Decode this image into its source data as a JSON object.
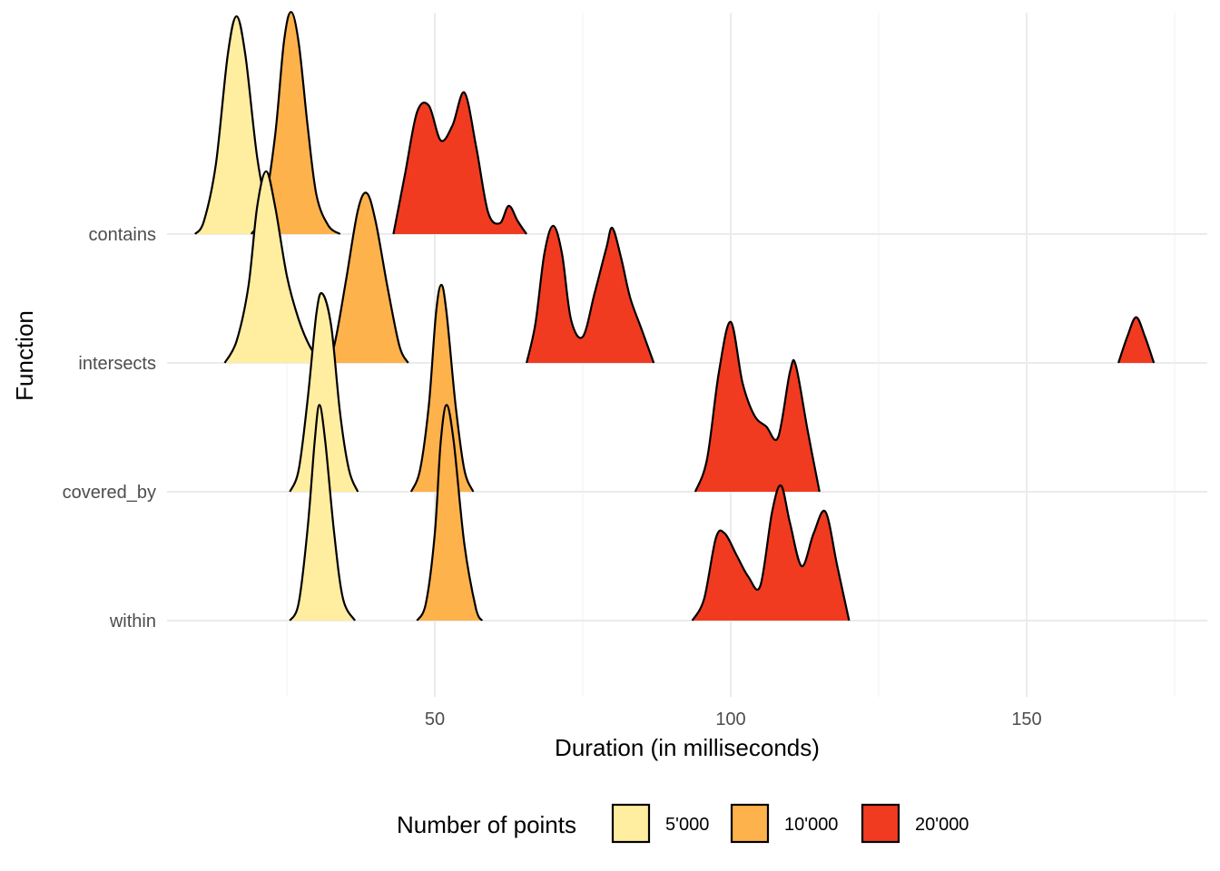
{
  "chart_data": {
    "type": "ridgeline",
    "title": "",
    "xlabel": "Duration (in milliseconds)",
    "ylabel": "Function",
    "xlim": [
      5,
      186
    ],
    "x_ticks": [
      50,
      100,
      150
    ],
    "x_tick_labels": [
      "50",
      "100",
      "150"
    ],
    "categories": [
      "contains",
      "intersects",
      "covered_by",
      "within"
    ],
    "grid": true,
    "legend": {
      "title": "Number of points",
      "placement": "bottom",
      "entries": [
        {
          "label": "5'000",
          "color": "#FFEDA0"
        },
        {
          "label": "10'000",
          "color": "#FEB24C"
        },
        {
          "label": "20'000",
          "color": "#F03B20"
        }
      ]
    },
    "series": [
      {
        "name": "5'000",
        "color": "#FFEDA0",
        "ridges": [
          {
            "category": "contains",
            "density": [
              [
                9.5,
                0
              ],
              [
                11,
                0.06
              ],
              [
                13,
                0.32
              ],
              [
                15,
                0.82
              ],
              [
                16.5,
                1.0
              ],
              [
                18,
                0.82
              ],
              [
                20,
                0.35
              ],
              [
                22,
                0.08
              ],
              [
                23.5,
                0
              ]
            ]
          },
          {
            "category": "intersects",
            "density": [
              [
                14.5,
                0
              ],
              [
                16.5,
                0.1
              ],
              [
                18.5,
                0.35
              ],
              [
                20,
                0.72
              ],
              [
                21.5,
                0.88
              ],
              [
                23,
                0.72
              ],
              [
                25,
                0.4
              ],
              [
                27,
                0.2
              ],
              [
                29,
                0.07
              ],
              [
                31,
                0
              ]
            ]
          },
          {
            "category": "covered_by",
            "density": [
              [
                25.5,
                0
              ],
              [
                27,
                0.1
              ],
              [
                28.5,
                0.42
              ],
              [
                30,
                0.82
              ],
              [
                31,
                0.91
              ],
              [
                32.5,
                0.76
              ],
              [
                34,
                0.36
              ],
              [
                35.5,
                0.1
              ],
              [
                37,
                0
              ]
            ]
          },
          {
            "category": "within",
            "density": [
              [
                25.5,
                0
              ],
              [
                27,
                0.08
              ],
              [
                28.5,
                0.42
              ],
              [
                29.7,
                0.82
              ],
              [
                30.5,
                0.99
              ],
              [
                31.5,
                0.82
              ],
              [
                33,
                0.4
              ],
              [
                34.5,
                0.1
              ],
              [
                36.5,
                0
              ]
            ]
          }
        ]
      },
      {
        "name": "10'000",
        "color": "#FEB24C",
        "ridges": [
          {
            "category": "contains",
            "density": [
              [
                19,
                0
              ],
              [
                21,
                0.1
              ],
              [
                23,
                0.45
              ],
              [
                24.5,
                0.88
              ],
              [
                25.7,
                1.02
              ],
              [
                27,
                0.88
              ],
              [
                28.5,
                0.5
              ],
              [
                30,
                0.18
              ],
              [
                32,
                0.04
              ],
              [
                34,
                0
              ]
            ]
          },
          {
            "category": "intersects",
            "density": [
              [
                31.5,
                0
              ],
              [
                33,
                0.08
              ],
              [
                35,
                0.38
              ],
              [
                37,
                0.7
              ],
              [
                38.5,
                0.78
              ],
              [
                40,
                0.65
              ],
              [
                42,
                0.35
              ],
              [
                44,
                0.08
              ],
              [
                45.5,
                0
              ]
            ]
          },
          {
            "category": "covered_by",
            "density": [
              [
                46,
                0
              ],
              [
                47.5,
                0.1
              ],
              [
                49,
                0.4
              ],
              [
                50.2,
                0.82
              ],
              [
                51.1,
                0.95
              ],
              [
                52,
                0.82
              ],
              [
                53.5,
                0.4
              ],
              [
                55,
                0.1
              ],
              [
                56.5,
                0
              ]
            ]
          },
          {
            "category": "within",
            "density": [
              [
                47,
                0
              ],
              [
                48.5,
                0.08
              ],
              [
                50,
                0.4
              ],
              [
                51,
                0.82
              ],
              [
                52,
                0.99
              ],
              [
                53.2,
                0.82
              ],
              [
                55,
                0.35
              ],
              [
                57,
                0.05
              ],
              [
                58,
                0
              ]
            ]
          }
        ]
      },
      {
        "name": "20'000",
        "color": "#F03B20",
        "ridges": [
          {
            "category": "contains",
            "density": [
              [
                43,
                0
              ],
              [
                45,
                0.28
              ],
              [
                47,
                0.56
              ],
              [
                49,
                0.59
              ],
              [
                51,
                0.43
              ],
              [
                53,
                0.5
              ],
              [
                55,
                0.65
              ],
              [
                57,
                0.4
              ],
              [
                59,
                0.1
              ],
              [
                61,
                0.05
              ],
              [
                62.5,
                0.13
              ],
              [
                64,
                0.06
              ],
              [
                65.5,
                0
              ]
            ]
          },
          {
            "category": "intersects",
            "density": [
              [
                65.5,
                0
              ],
              [
                67,
                0.18
              ],
              [
                68.5,
                0.5
              ],
              [
                70,
                0.63
              ],
              [
                71.5,
                0.5
              ],
              [
                73,
                0.2
              ],
              [
                75,
                0.12
              ],
              [
                77,
                0.32
              ],
              [
                79,
                0.53
              ],
              [
                80,
                0.62
              ],
              [
                81.5,
                0.48
              ],
              [
                83,
                0.3
              ],
              [
                85,
                0.15
              ],
              [
                87,
                0
              ]
            ]
          },
          {
            "category": "intersects",
            "density": [
              [
                165.5,
                0
              ],
              [
                167,
                0.12
              ],
              [
                168.5,
                0.21
              ],
              [
                170,
                0.12
              ],
              [
                171.5,
                0
              ]
            ]
          },
          {
            "category": "covered_by",
            "density": [
              [
                94,
                0
              ],
              [
                96,
                0.15
              ],
              [
                98,
                0.55
              ],
              [
                100,
                0.78
              ],
              [
                102,
                0.5
              ],
              [
                104,
                0.35
              ],
              [
                106,
                0.3
              ],
              [
                108,
                0.25
              ],
              [
                110,
                0.55
              ],
              [
                111,
                0.58
              ],
              [
                113,
                0.28
              ],
              [
                115,
                0
              ]
            ]
          },
          {
            "category": "within",
            "density": [
              [
                93.5,
                0
              ],
              [
                95.5,
                0.1
              ],
              [
                97.5,
                0.38
              ],
              [
                99,
                0.4
              ],
              [
                101,
                0.3
              ],
              [
                103,
                0.2
              ],
              [
                105,
                0.16
              ],
              [
                107,
                0.5
              ],
              [
                108.5,
                0.62
              ],
              [
                110,
                0.45
              ],
              [
                112,
                0.25
              ],
              [
                114,
                0.4
              ],
              [
                116,
                0.5
              ],
              [
                118,
                0.25
              ],
              [
                120,
                0
              ]
            ]
          }
        ]
      }
    ]
  }
}
